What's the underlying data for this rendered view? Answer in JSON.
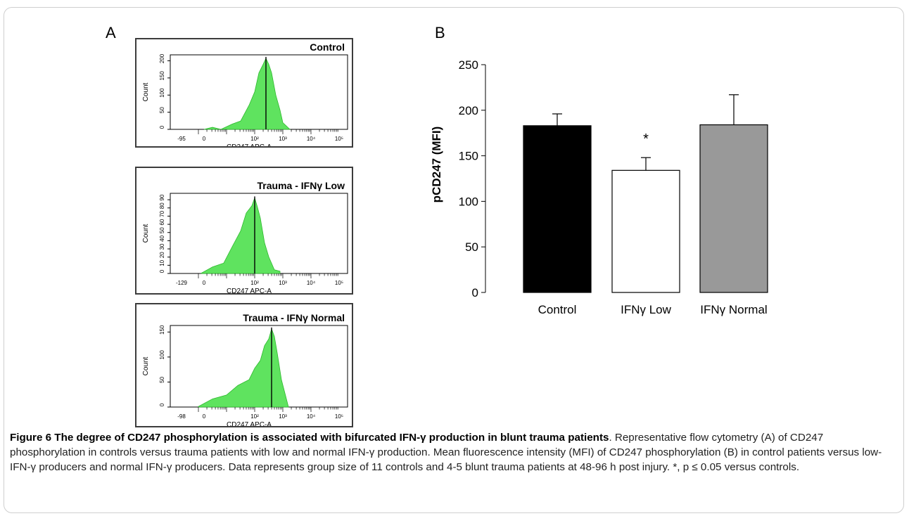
{
  "panel_a": {
    "letter": "A"
  },
  "panel_b": {
    "letter": "B"
  },
  "chart_data": [
    {
      "type": "area",
      "panel": "A",
      "title": "Control",
      "xlabel": "CD247 APC-A",
      "ylabel": "Count",
      "x_ticks": [
        "-95",
        "0",
        "10²",
        "10³",
        "10⁴",
        "10⁵"
      ],
      "y_ticks": [
        "0",
        "50",
        "100",
        "150",
        "200"
      ],
      "ylim": [
        0,
        230
      ],
      "gate_x": "10²·⁴",
      "fill_color": "#5fe35f",
      "histogram": {
        "x": [
          0.2,
          0.5,
          0.8,
          1.2,
          1.5,
          1.8,
          2.0,
          2.15,
          2.3,
          2.4,
          2.5,
          2.6,
          2.75,
          2.9,
          3.0,
          3.1,
          3.25
        ],
        "y": [
          1,
          2,
          4,
          12,
          30,
          70,
          120,
          170,
          205,
          215,
          205,
          170,
          110,
          55,
          25,
          8,
          1
        ]
      }
    },
    {
      "type": "area",
      "panel": "A",
      "title": "Trauma - IFNγ Low",
      "xlabel": "CD247 APC-A",
      "ylabel": "Count",
      "x_ticks": [
        "-129",
        "0",
        "10²",
        "10³",
        "10⁴",
        "10⁵"
      ],
      "y_ticks": [
        "0",
        "10",
        "20",
        "30",
        "40",
        "50",
        "60",
        "70",
        "80",
        "90"
      ],
      "ylim": [
        0,
        95
      ],
      "gate_x": "10²·⁰",
      "fill_color": "#5fe35f",
      "histogram": {
        "x": [
          0.1,
          0.5,
          0.9,
          1.2,
          1.5,
          1.7,
          1.9,
          2.0,
          2.1,
          2.2,
          2.35,
          2.5,
          2.7,
          2.9
        ],
        "y": [
          2,
          6,
          14,
          30,
          52,
          70,
          82,
          88,
          80,
          64,
          38,
          18,
          6,
          1
        ]
      }
    },
    {
      "type": "area",
      "panel": "A",
      "title": "Trauma - IFNγ Normal",
      "xlabel": "CD247 APC-A",
      "ylabel": "Count",
      "x_ticks": [
        "-98",
        "0",
        "10²",
        "10³",
        "10⁴",
        "10⁵"
      ],
      "y_ticks": [
        "0",
        "50",
        "100",
        "150"
      ],
      "ylim": [
        0,
        170
      ],
      "gate_x": "10²·⁴",
      "fill_color": "#5fe35f",
      "histogram": {
        "x": [
          0.0,
          0.5,
          1.0,
          1.4,
          1.8,
          2.0,
          2.2,
          2.35,
          2.5,
          2.6,
          2.7,
          2.8,
          2.95,
          3.1,
          3.2
        ],
        "y": [
          4,
          14,
          28,
          42,
          60,
          78,
          100,
          125,
          145,
          160,
          150,
          110,
          60,
          20,
          3
        ]
      }
    },
    {
      "type": "bar",
      "panel": "B",
      "categories": [
        "Control",
        "IFNγ Low",
        "IFNγ Normal"
      ],
      "values": [
        183,
        134,
        184
      ],
      "error_plus": [
        13,
        14,
        33
      ],
      "bar_colors": [
        "#000000",
        "#ffffff",
        "#999999"
      ],
      "annotations": [
        {
          "category": "IFNγ Low",
          "text": "*"
        }
      ],
      "ylabel": "pCD247 (MFI)",
      "xlabel": "",
      "ylim": [
        0,
        250
      ],
      "y_ticks": [
        0,
        50,
        100,
        150,
        200,
        250
      ]
    }
  ],
  "caption": {
    "title": "Figure 6 The degree of CD247 phosphorylation is associated with bifurcated IFN-γ production in blunt trauma patients",
    "body": ". Representative flow cytometry (A) of CD247 phosphorylation in controls versus trauma patients with low and normal IFN-γ production. Mean fluorescence intensity (MFI) of CD247 phosphorylation (B) in control patients versus low-IFN-γ producers and normal IFN-γ producers. Data represents group size of 11 controls and 4-5 blunt trauma patients at 48-96 h post injury. *, p ≤ 0.05 versus controls."
  }
}
